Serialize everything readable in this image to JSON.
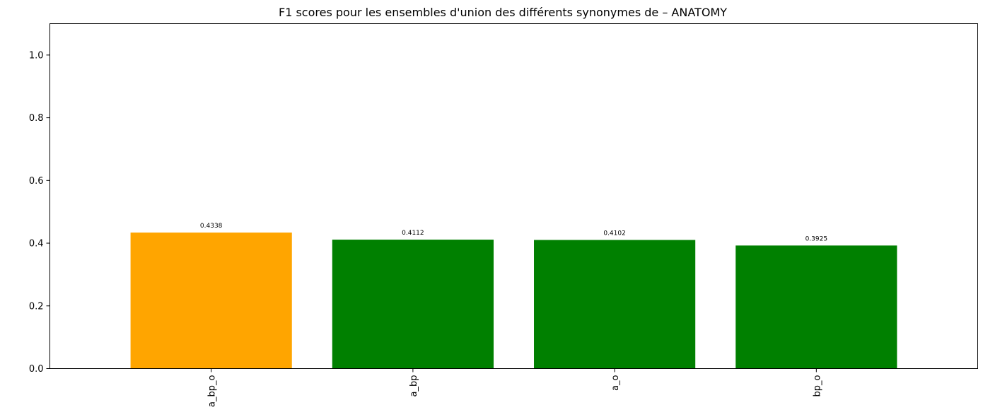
{
  "chart_data": {
    "type": "bar",
    "title": "F1 scores pour les ensembles d'union des différents synonymes de – ANATOMY",
    "xlabel": "",
    "ylabel": "",
    "categories": [
      "a_bp_o",
      "a_bp",
      "a_o",
      "bp_o"
    ],
    "values": [
      0.4338,
      0.4112,
      0.4102,
      0.3925
    ],
    "value_labels": [
      "0.4338",
      "0.4112",
      "0.4102",
      "0.3925"
    ],
    "bar_colors": [
      "#ffa500",
      "#008000",
      "#008000",
      "#008000"
    ],
    "ylim": [
      0,
      1.1
    ],
    "yticks": [
      0.0,
      0.2,
      0.4,
      0.6,
      0.8,
      1.0
    ],
    "ytick_labels": [
      "0.0",
      "0.2",
      "0.4",
      "0.6",
      "0.8",
      "1.0"
    ],
    "x_tick_rotation": "vertical",
    "grid": false,
    "legend": false
  }
}
